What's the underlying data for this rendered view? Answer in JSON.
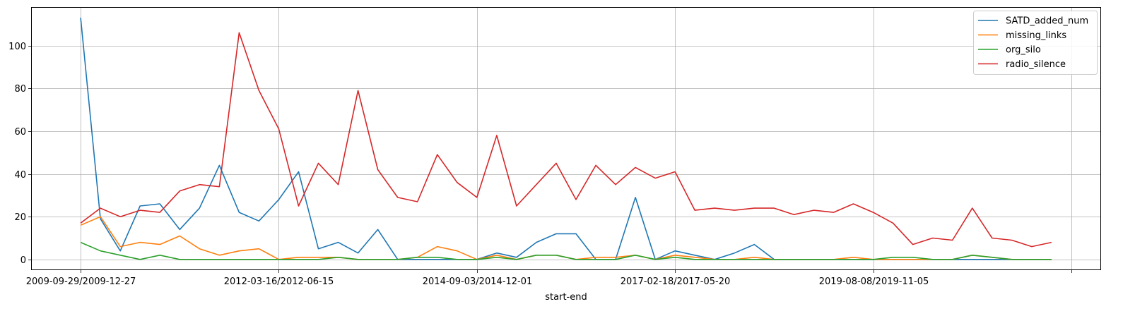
{
  "chart_data": {
    "type": "line",
    "xlabel": "start-end",
    "ylabel": "",
    "ylim": [
      -5,
      118
    ],
    "y_ticks": [
      0,
      20,
      40,
      60,
      80,
      100
    ],
    "x_tick_labels": [
      {
        "index": 0,
        "label": "2009-09-29/2009-12-27"
      },
      {
        "index": 10,
        "label": "2012-03-16/2012-06-15"
      },
      {
        "index": 20,
        "label": "2014-09-03/2014-12-01"
      },
      {
        "index": 30,
        "label": "2017-02-18/2017-05-20"
      },
      {
        "index": 40,
        "label": "2019-08-08/2019-11-05"
      },
      {
        "index": 50,
        "label": ""
      }
    ],
    "xlim": [
      -2.5,
      51.5
    ],
    "grid": true,
    "legend_position": "top-right",
    "series": [
      {
        "name": "SATD_added_num",
        "color": "#1f77b4",
        "values": [
          113,
          19,
          4,
          25,
          26,
          14,
          24,
          44,
          22,
          18,
          28,
          41,
          5,
          8,
          3,
          14,
          0,
          0,
          0,
          0,
          0,
          3,
          1,
          8,
          12,
          12,
          0,
          0,
          29,
          0,
          4,
          2,
          0,
          3,
          7,
          0,
          0,
          0,
          0,
          0,
          0,
          0,
          0,
          0,
          0,
          0,
          0,
          0,
          0,
          0
        ]
      },
      {
        "name": "missing_links",
        "color": "#ff7f0e",
        "values": [
          16,
          20,
          6,
          8,
          7,
          11,
          5,
          2,
          4,
          5,
          0,
          1,
          1,
          1,
          0,
          0,
          0,
          1,
          6,
          4,
          0,
          2,
          0,
          2,
          2,
          0,
          1,
          1,
          2,
          0,
          2,
          1,
          0,
          0,
          1,
          0,
          0,
          0,
          0,
          1,
          0,
          0,
          0,
          0,
          0,
          2,
          1,
          0,
          0,
          0
        ]
      },
      {
        "name": "org_silo",
        "color": "#2ca02c",
        "values": [
          8,
          4,
          2,
          0,
          2,
          0,
          0,
          0,
          0,
          0,
          0,
          0,
          0,
          1,
          0,
          0,
          0,
          1,
          1,
          0,
          0,
          1,
          0,
          2,
          2,
          0,
          0,
          0,
          2,
          0,
          1,
          0,
          0,
          0,
          0,
          0,
          0,
          0,
          0,
          0,
          0,
          1,
          1,
          0,
          0,
          2,
          1,
          0,
          0,
          0
        ]
      },
      {
        "name": "radio_silence",
        "color": "#d62728",
        "values": [
          17,
          24,
          20,
          23,
          22,
          32,
          35,
          34,
          106,
          79,
          61,
          25,
          45,
          35,
          79,
          42,
          29,
          27,
          49,
          36,
          29,
          58,
          25,
          35,
          45,
          28,
          44,
          35,
          43,
          38,
          41,
          23,
          24,
          23,
          24,
          24,
          21,
          23,
          22,
          26,
          22,
          17,
          7,
          10,
          9,
          24,
          10,
          9,
          6,
          8
        ]
      }
    ]
  }
}
